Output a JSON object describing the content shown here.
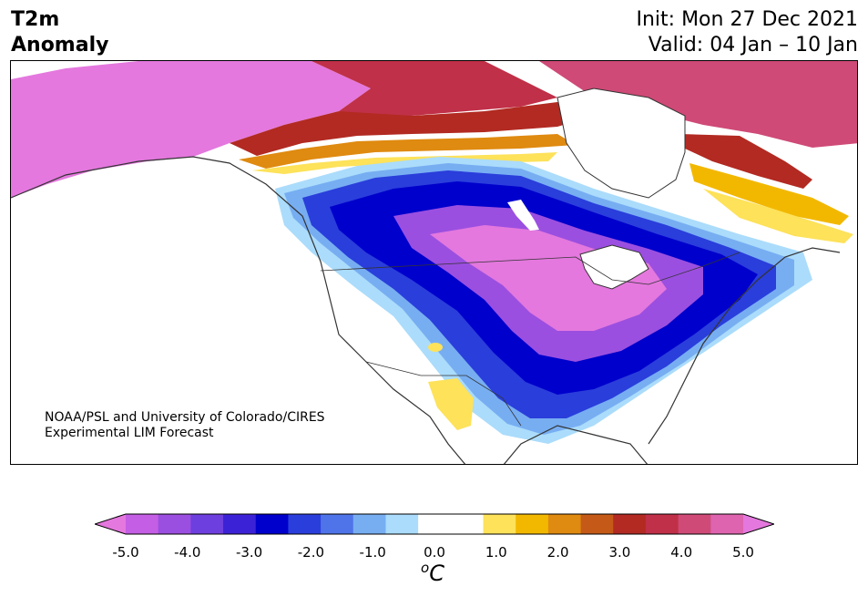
{
  "title": {
    "variable": "T2m",
    "type": "Anomaly",
    "init": "Init: Mon 27 Dec 2021",
    "valid": "Valid: 04 Jan – 10 Jan"
  },
  "credit": {
    "line1": "NOAA/PSL and University of Colorado/CIRES",
    "line2": "Experimental LIM Forecast"
  },
  "colorbar": {
    "unit_sup": "o",
    "unit_main": "C",
    "colors": [
      "#e478de",
      "#c45ee4",
      "#9b4fe0",
      "#6e3fdf",
      "#3c22d6",
      "#0000cc",
      "#2a3edb",
      "#4f73e8",
      "#77aef2",
      "#abdcfb",
      "#ffffff",
      "#ffffff",
      "#fde25a",
      "#f2b800",
      "#df8a10",
      "#c55a18",
      "#b22a22",
      "#c03048",
      "#cf4a76",
      "#de64b0",
      "#e478de"
    ],
    "ticks": [
      "-5.0",
      "-4.0",
      "-3.0",
      "-2.0",
      "-1.0",
      "0.0",
      "1.0",
      "2.0",
      "3.0",
      "4.0",
      "5.0"
    ]
  }
}
